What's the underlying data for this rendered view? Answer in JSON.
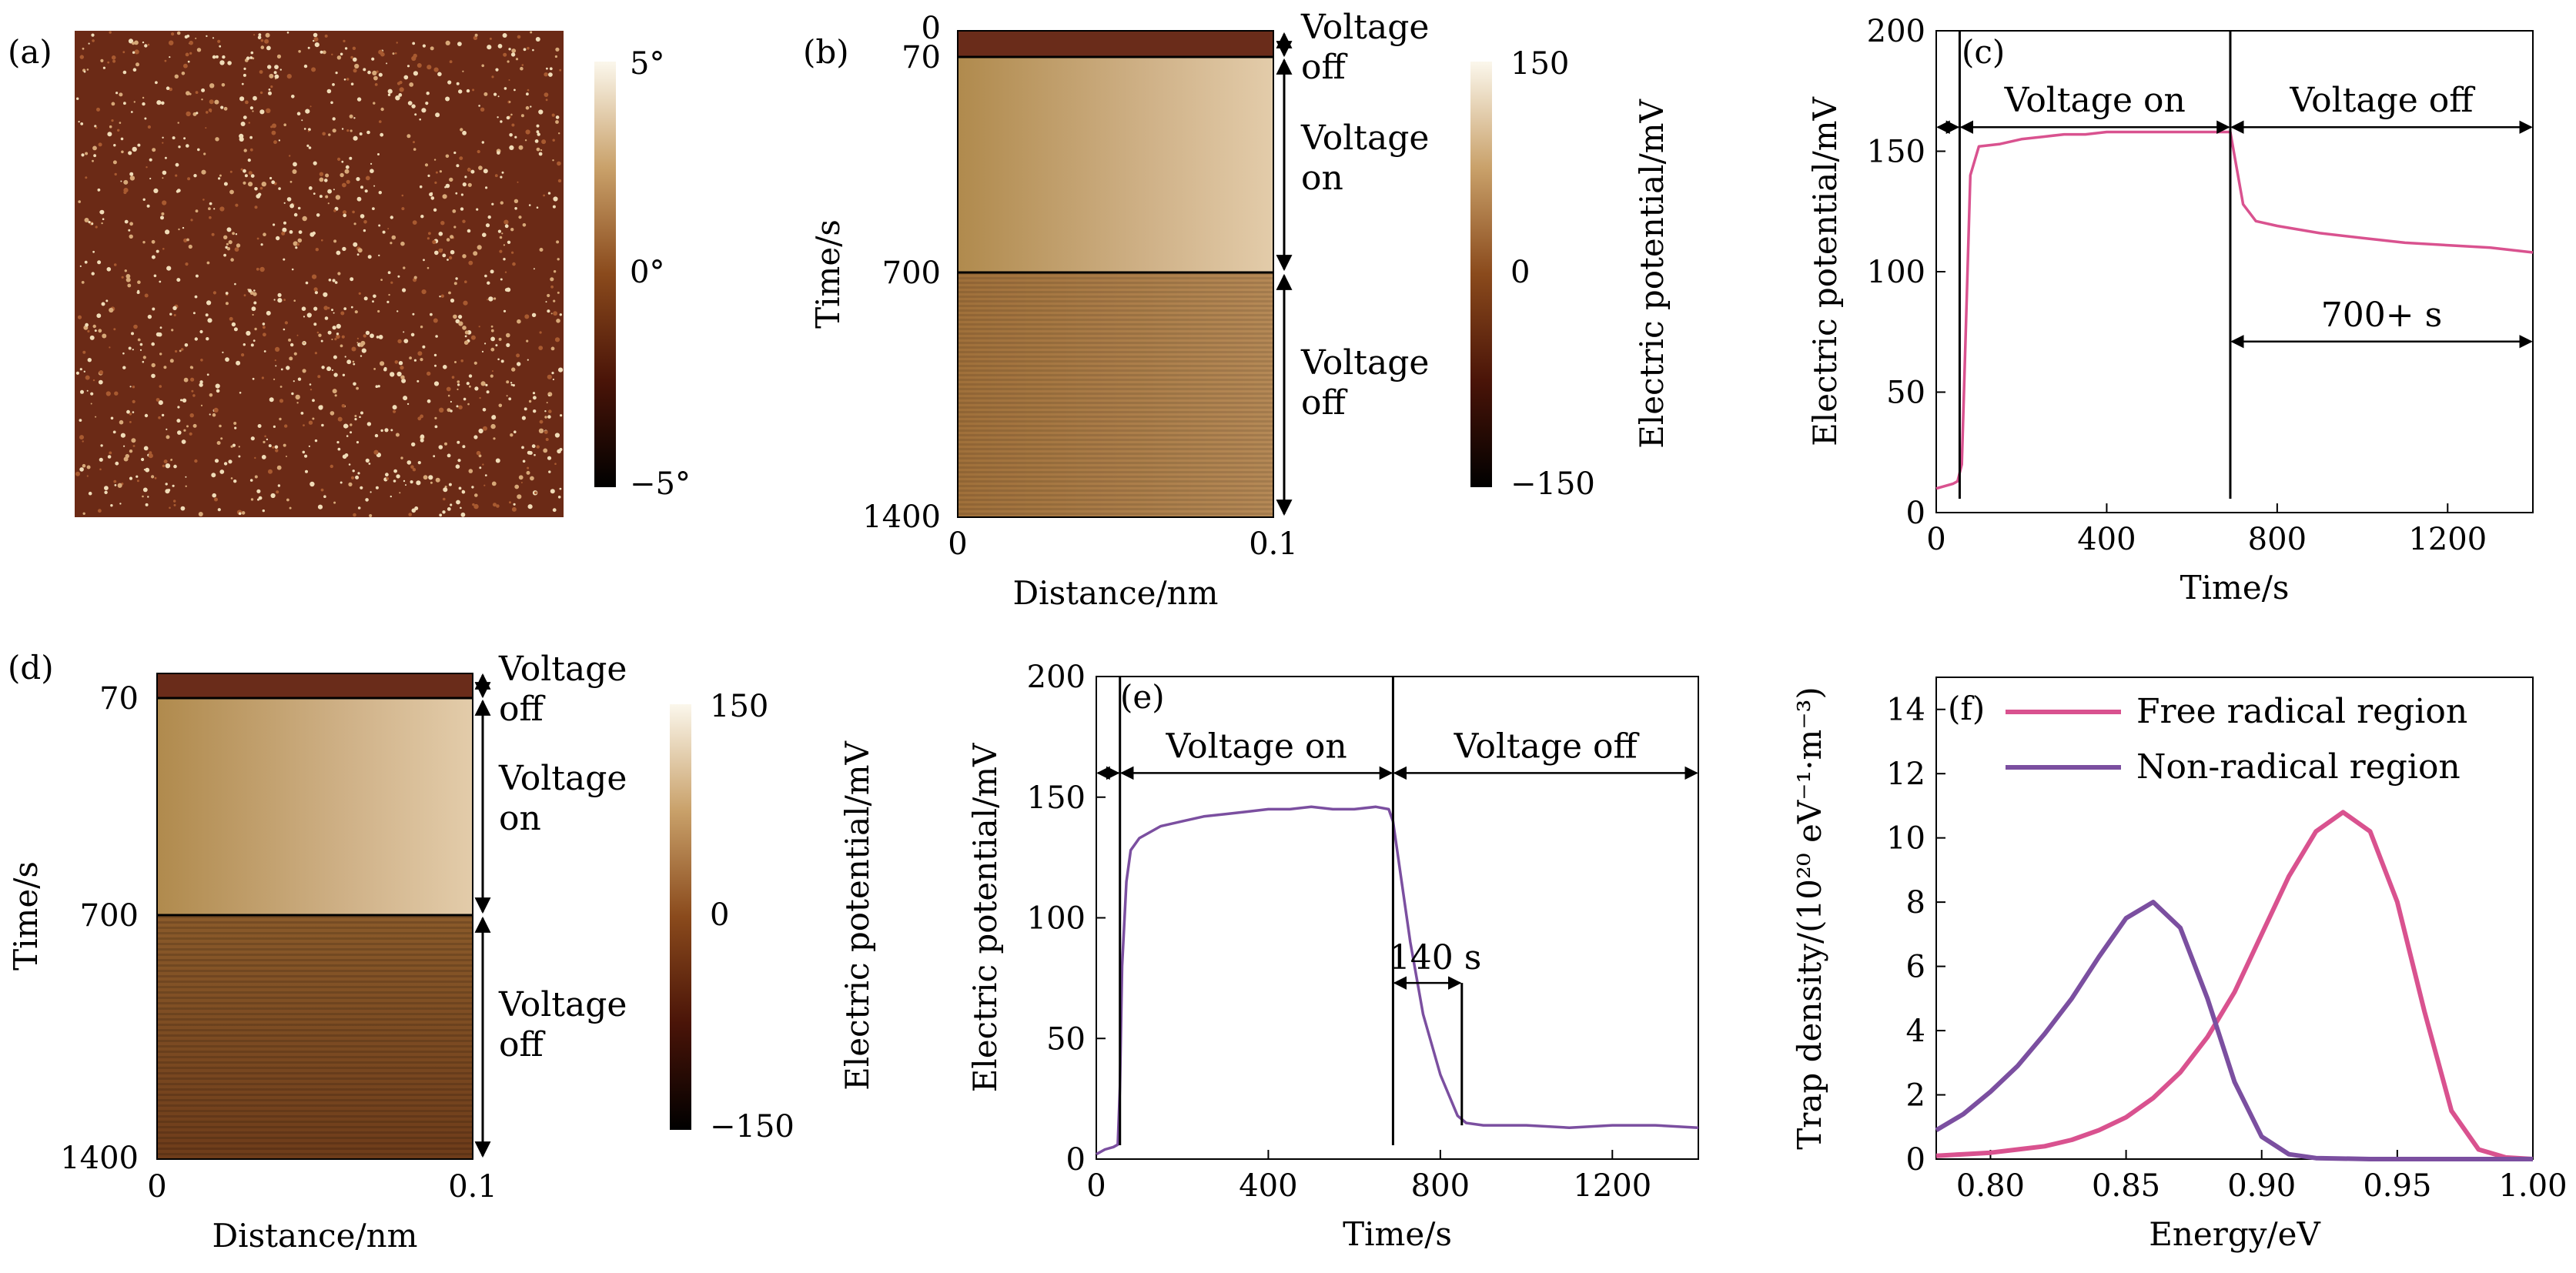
{
  "panel_a": {
    "label": "(a)",
    "colorbar": {
      "max": "5°",
      "mid": "0°",
      "min": "−5°"
    }
  },
  "panel_b": {
    "label": "(b)",
    "ylabel": "Time/s",
    "xlabel": "Distance/nm",
    "yticks": [
      "0",
      "70",
      "700",
      "1400"
    ],
    "xticks": [
      "0",
      "0.1"
    ],
    "segments": [
      "Voltage off",
      "Voltage on",
      "Voltage off"
    ],
    "colorbar": {
      "max": "150",
      "mid": "0",
      "min": "−150",
      "label": "Electric potential/mV"
    }
  },
  "panel_d": {
    "label": "(d)",
    "ylabel": "Time/s",
    "xlabel": "Distance/nm",
    "yticks": [
      "70",
      "700",
      "1400"
    ],
    "xticks": [
      "0",
      "0.1"
    ],
    "segments": [
      "Voltage off",
      "Voltage on",
      "Voltage off"
    ],
    "colorbar": {
      "max": "150",
      "mid": "0",
      "min": "−150",
      "label": "Electric potential/mV"
    }
  },
  "colors": {
    "pink": "#d9528f",
    "purple": "#7b4fa0",
    "afm_dark": "#6b2a16",
    "kpfm_gold": "#b08a55"
  },
  "chart_data": [
    {
      "id": "c",
      "label": "(c)",
      "type": "line",
      "xlabel": "Time/s",
      "ylabel": "Electric potential/mV",
      "xlim": [
        0,
        1400
      ],
      "ylim": [
        0,
        200
      ],
      "xticks": [
        0,
        400,
        800,
        1200
      ],
      "yticks": [
        0,
        50,
        100,
        150,
        200
      ],
      "annotations": {
        "on": "Voltage on",
        "off": "Voltage off",
        "decay": "700+ s"
      },
      "series": [
        {
          "color": "#d9528f",
          "x": [
            0,
            20,
            40,
            50,
            60,
            70,
            80,
            100,
            150,
            200,
            250,
            300,
            350,
            400,
            450,
            500,
            550,
            600,
            650,
            690,
            700,
            720,
            750,
            800,
            900,
            1000,
            1100,
            1200,
            1300,
            1400
          ],
          "y": [
            10,
            11,
            12,
            13,
            20,
            80,
            140,
            152,
            153,
            155,
            156,
            157,
            157,
            158,
            158,
            158,
            158,
            158,
            158,
            158,
            148,
            128,
            121,
            119,
            116,
            114,
            112,
            111,
            110,
            108
          ]
        }
      ]
    },
    {
      "id": "e",
      "label": "(e)",
      "type": "line",
      "xlabel": "Time/s",
      "ylabel": "Electric potential/mV",
      "xlim": [
        0,
        1400
      ],
      "ylim": [
        0,
        200
      ],
      "xticks": [
        0,
        400,
        800,
        1200
      ],
      "yticks": [
        0,
        50,
        100,
        150,
        200
      ],
      "annotations": {
        "on": "Voltage on",
        "off": "Voltage off",
        "decay": "140 s"
      },
      "series": [
        {
          "color": "#7b4fa0",
          "x": [
            0,
            20,
            40,
            50,
            55,
            60,
            70,
            80,
            100,
            150,
            200,
            250,
            300,
            350,
            400,
            450,
            500,
            550,
            600,
            650,
            680,
            690,
            710,
            730,
            760,
            800,
            840,
            860,
            900,
            1000,
            1100,
            1200,
            1300,
            1400
          ],
          "y": [
            2,
            4,
            5,
            6,
            30,
            80,
            115,
            128,
            133,
            138,
            140,
            142,
            143,
            144,
            145,
            145,
            146,
            145,
            145,
            146,
            145,
            140,
            115,
            90,
            60,
            35,
            18,
            15,
            14,
            14,
            13,
            14,
            14,
            13
          ]
        }
      ]
    },
    {
      "id": "f",
      "label": "(f)",
      "type": "line",
      "xlabel": "Energy/eV",
      "ylabel": "Trap density/(10²⁰ eV⁻¹·m⁻³)",
      "xlim": [
        0.78,
        1.0
      ],
      "ylim": [
        0,
        15
      ],
      "xticks": [
        "0.80",
        "0.85",
        "0.90",
        "0.95",
        "1.00"
      ],
      "yticks": [
        0,
        2,
        4,
        6,
        8,
        10,
        12,
        14
      ],
      "legend": "top-left",
      "series": [
        {
          "name": "Free radical region",
          "color": "#d9528f",
          "x": [
            0.78,
            0.79,
            0.8,
            0.81,
            0.82,
            0.83,
            0.84,
            0.85,
            0.86,
            0.87,
            0.88,
            0.89,
            0.9,
            0.91,
            0.92,
            0.93,
            0.94,
            0.95,
            0.96,
            0.97,
            0.98,
            0.99,
            1.0
          ],
          "y": [
            0.1,
            0.15,
            0.2,
            0.3,
            0.4,
            0.6,
            0.9,
            1.3,
            1.9,
            2.7,
            3.8,
            5.2,
            7.0,
            8.8,
            10.2,
            10.8,
            10.2,
            8.0,
            4.6,
            1.5,
            0.3,
            0.05,
            0.0
          ]
        },
        {
          "name": "Non-radical region",
          "color": "#7b4fa0",
          "x": [
            0.78,
            0.79,
            0.8,
            0.81,
            0.82,
            0.83,
            0.84,
            0.85,
            0.86,
            0.87,
            0.88,
            0.89,
            0.9,
            0.91,
            0.92,
            0.94,
            0.96,
            0.98,
            1.0
          ],
          "y": [
            0.9,
            1.4,
            2.1,
            2.9,
            3.9,
            5.0,
            6.3,
            7.5,
            8.0,
            7.2,
            5.0,
            2.4,
            0.7,
            0.15,
            0.03,
            0.0,
            0.0,
            0.0,
            0.0
          ]
        }
      ]
    }
  ]
}
